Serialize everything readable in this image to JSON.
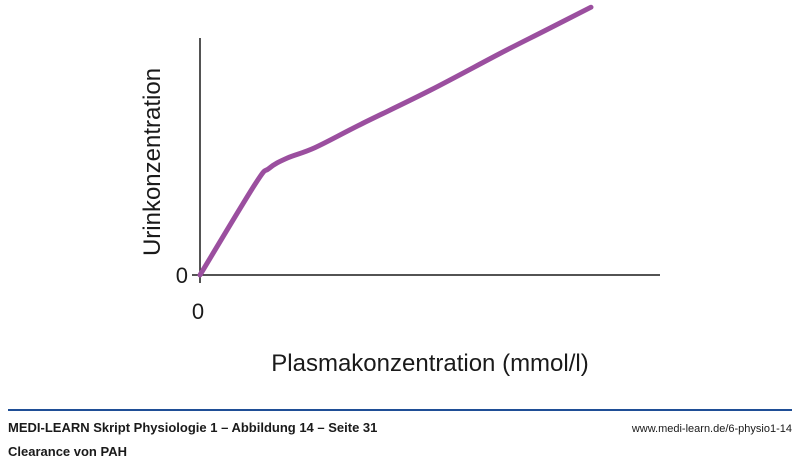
{
  "chart_data": {
    "type": "line",
    "xlabel": "Plasmakonzentration (mmol/l)",
    "ylabel": "Urinkonzentration",
    "x_tick_labels": [
      "0"
    ],
    "y_tick_labels": [
      "0"
    ],
    "series": [
      {
        "color": "#9b4f9f",
        "x": [
          0,
          0.12,
          0.15,
          0.19,
          0.25,
          0.35,
          0.5,
          0.65,
          0.75,
          0.85
        ],
        "y": [
          0,
          0.35,
          0.41,
          0.45,
          0.49,
          0.58,
          0.71,
          0.85,
          0.94,
          1.03
        ]
      }
    ],
    "xlim": [
      0,
      1
    ],
    "ylim": [
      0,
      1
    ],
    "grid": false,
    "legend": "none"
  },
  "footer": {
    "title": "MEDI-LEARN Skript Physiologie 1 – Abbildung 14 – Seite 31",
    "subtitle": "Clearance von PAH",
    "url": "www.medi-learn.de/6-physio1-14",
    "rule_color": "#1f4e96"
  }
}
